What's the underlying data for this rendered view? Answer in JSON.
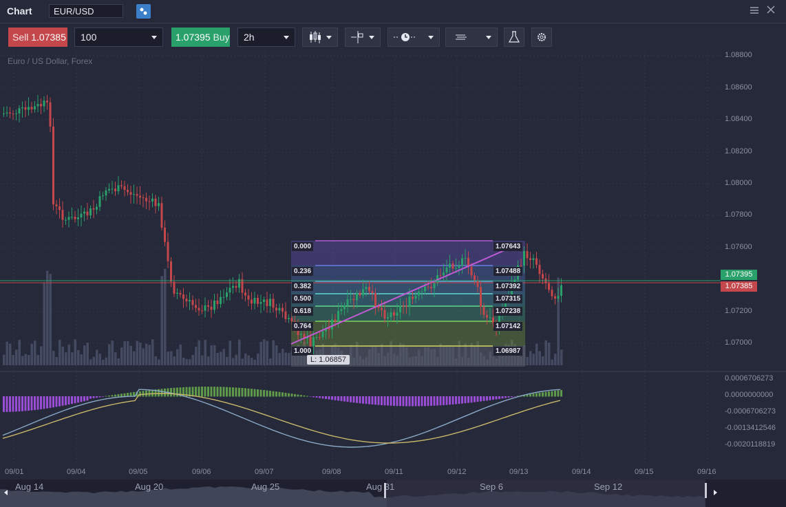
{
  "window": {
    "title": "Chart",
    "symbol": "EUR/USD"
  },
  "toolbar": {
    "sell_label": "Sell",
    "sell_price": "1.07385",
    "quantity": "100",
    "buy_price": "1.07395",
    "buy_label": "Buy",
    "timeframe": "2h"
  },
  "chart": {
    "instrument_desc": "Euro / US Dollar, Forex",
    "price_axis": [
      "1.08800",
      "1.08600",
      "1.08400",
      "1.08200",
      "1.08000",
      "1.07800",
      "1.07600",
      "1.07400",
      "1.07200",
      "1.07000"
    ],
    "buy_tag": "1.07395",
    "sell_tag": "1.07385",
    "macd_axis": [
      "0.0006706273",
      "0.0000000000",
      "-0.0006706273",
      "-0.0013412546",
      "-0.0020118819"
    ],
    "time_axis": [
      "09/01",
      "09/04",
      "09/05",
      "09/06",
      "09/07",
      "09/08",
      "09/11",
      "09/12",
      "09/13",
      "09/14",
      "09/15",
      "09/16"
    ],
    "navigator_labels": [
      "Aug 14",
      "Aug 20",
      "Aug 25",
      "Aug 31",
      "Sep 6",
      "Sep 12"
    ],
    "fibonacci": {
      "levels": [
        {
          "ratio": "0.000",
          "price": "1.07643"
        },
        {
          "ratio": "0.236",
          "price": "1.07488"
        },
        {
          "ratio": "0.382",
          "price": "1.07392"
        },
        {
          "ratio": "0.500",
          "price": "1.07315"
        },
        {
          "ratio": "0.618",
          "price": "1.07238"
        },
        {
          "ratio": "0.764",
          "price": "1.07142"
        },
        {
          "ratio": "1.000",
          "price": "1.06987"
        }
      ],
      "low_label": "L: 1.06857"
    },
    "colors": {
      "up": "#2aa06b",
      "down": "#c4474c",
      "volume": "#4a5068",
      "macd_pos": "#5f9a4a",
      "macd_neg": "#9a4ed8",
      "macd_line": "#8aa9c9",
      "signal_line": "#c9b86a",
      "fib_trend": "#c25ad6"
    }
  }
}
